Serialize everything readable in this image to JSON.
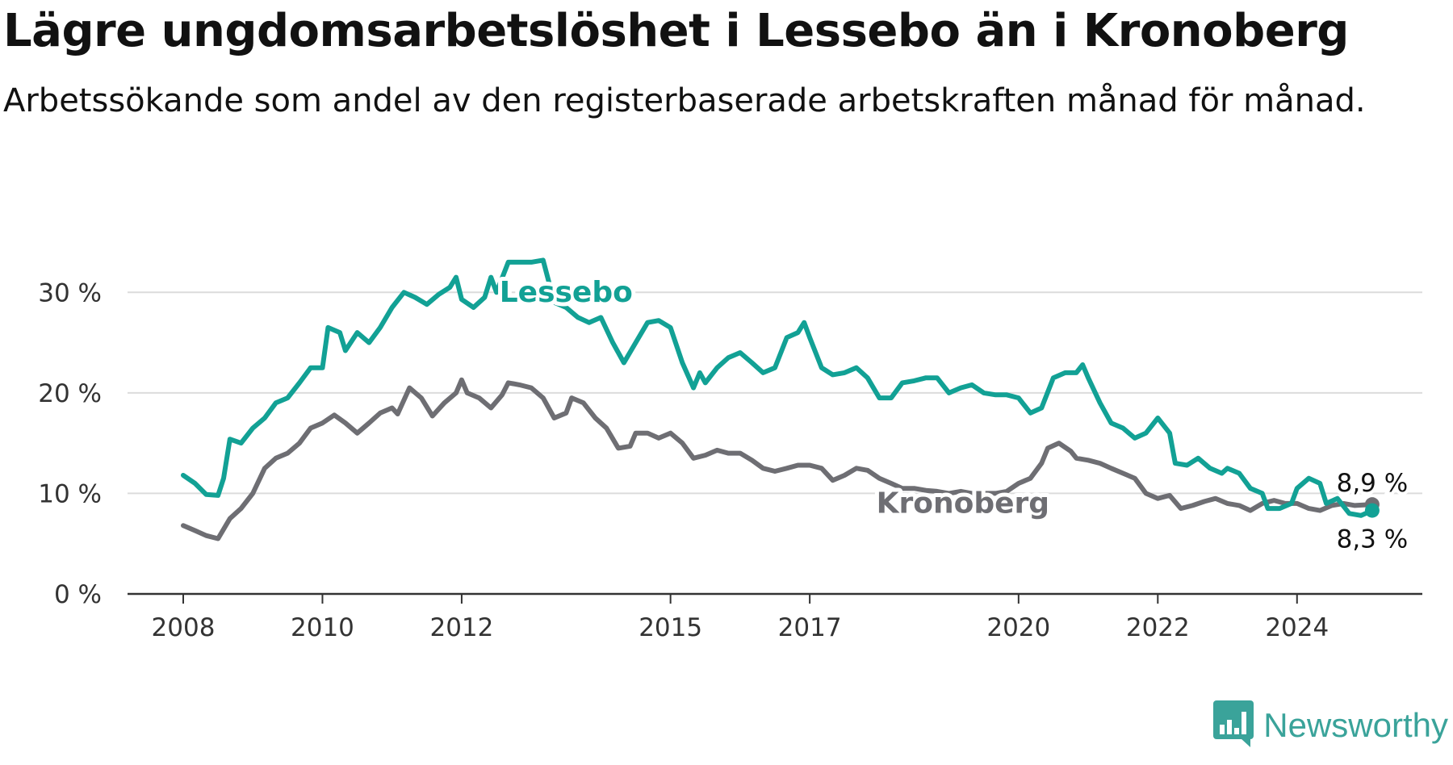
{
  "title": "Lägre ungdomsarbetslöshet i Lessebo än i Kronoberg",
  "subtitle": "Arbetssökande som andel av den registerbaserade arbetskraften månad för månad.",
  "brand": {
    "name": "Newsworthy",
    "color": "#3aa39a",
    "icon": "bar-chart-speech-icon"
  },
  "chart_data": {
    "type": "line",
    "x_range": [
      2007.2,
      2025.8
    ],
    "y_range": [
      0,
      35
    ],
    "y_ticks": [
      0,
      10,
      20,
      30
    ],
    "y_tick_labels": [
      "0 %",
      "10 %",
      "20 %",
      "30 %"
    ],
    "x_ticks": [
      2008,
      2010,
      2012,
      2015,
      2017,
      2020,
      2022,
      2024
    ],
    "x_tick_labels": [
      "2008",
      "2010",
      "2012",
      "2015",
      "2017",
      "2020",
      "2022",
      "2024"
    ],
    "grid": "horizontal",
    "series": [
      {
        "name": "Lessebo",
        "color": "#12a195",
        "end_label": "8,3 %",
        "points": [
          [
            2008.0,
            11.8
          ],
          [
            2008.17,
            11.0
          ],
          [
            2008.33,
            9.9
          ],
          [
            2008.5,
            9.8
          ],
          [
            2008.58,
            11.5
          ],
          [
            2008.67,
            15.4
          ],
          [
            2008.83,
            15.0
          ],
          [
            2009.0,
            16.5
          ],
          [
            2009.17,
            17.5
          ],
          [
            2009.33,
            19.0
          ],
          [
            2009.5,
            19.5
          ],
          [
            2009.67,
            21.0
          ],
          [
            2009.83,
            22.5
          ],
          [
            2010.0,
            22.5
          ],
          [
            2010.08,
            26.5
          ],
          [
            2010.25,
            26.0
          ],
          [
            2010.33,
            24.2
          ],
          [
            2010.5,
            26.0
          ],
          [
            2010.67,
            25.0
          ],
          [
            2010.83,
            26.5
          ],
          [
            2011.0,
            28.5
          ],
          [
            2011.17,
            30.0
          ],
          [
            2011.33,
            29.5
          ],
          [
            2011.5,
            28.8
          ],
          [
            2011.67,
            29.8
          ],
          [
            2011.83,
            30.5
          ],
          [
            2011.92,
            31.5
          ],
          [
            2012.0,
            29.3
          ],
          [
            2012.17,
            28.5
          ],
          [
            2012.33,
            29.5
          ],
          [
            2012.42,
            31.5
          ],
          [
            2012.5,
            30.0
          ],
          [
            2012.67,
            33.0
          ],
          [
            2012.83,
            33.0
          ],
          [
            2013.0,
            33.0
          ],
          [
            2013.17,
            33.2
          ],
          [
            2013.33,
            29.0
          ],
          [
            2013.5,
            28.5
          ],
          [
            2013.67,
            27.5
          ],
          [
            2013.83,
            27.0
          ],
          [
            2014.0,
            27.5
          ],
          [
            2014.17,
            25.0
          ],
          [
            2014.33,
            23.0
          ],
          [
            2014.5,
            25.0
          ],
          [
            2014.67,
            27.0
          ],
          [
            2014.83,
            27.2
          ],
          [
            2015.0,
            26.5
          ],
          [
            2015.17,
            23.0
          ],
          [
            2015.33,
            20.5
          ],
          [
            2015.42,
            22.0
          ],
          [
            2015.5,
            21.0
          ],
          [
            2015.67,
            22.5
          ],
          [
            2015.83,
            23.5
          ],
          [
            2016.0,
            24.0
          ],
          [
            2016.17,
            23.0
          ],
          [
            2016.33,
            22.0
          ],
          [
            2016.5,
            22.5
          ],
          [
            2016.67,
            25.5
          ],
          [
            2016.83,
            26.0
          ],
          [
            2016.92,
            27.0
          ],
          [
            2017.0,
            25.5
          ],
          [
            2017.17,
            22.5
          ],
          [
            2017.33,
            21.8
          ],
          [
            2017.5,
            22.0
          ],
          [
            2017.67,
            22.5
          ],
          [
            2017.83,
            21.5
          ],
          [
            2018.0,
            19.5
          ],
          [
            2018.17,
            19.5
          ],
          [
            2018.33,
            21.0
          ],
          [
            2018.5,
            21.2
          ],
          [
            2018.67,
            21.5
          ],
          [
            2018.83,
            21.5
          ],
          [
            2019.0,
            20.0
          ],
          [
            2019.17,
            20.5
          ],
          [
            2019.33,
            20.8
          ],
          [
            2019.5,
            20.0
          ],
          [
            2019.67,
            19.8
          ],
          [
            2019.83,
            19.8
          ],
          [
            2020.0,
            19.5
          ],
          [
            2020.17,
            18.0
          ],
          [
            2020.33,
            18.5
          ],
          [
            2020.5,
            21.5
          ],
          [
            2020.67,
            22.0
          ],
          [
            2020.83,
            22.0
          ],
          [
            2020.92,
            22.8
          ],
          [
            2021.0,
            21.5
          ],
          [
            2021.17,
            19.0
          ],
          [
            2021.33,
            17.0
          ],
          [
            2021.5,
            16.5
          ],
          [
            2021.67,
            15.5
          ],
          [
            2021.83,
            16.0
          ],
          [
            2022.0,
            17.5
          ],
          [
            2022.17,
            16.0
          ],
          [
            2022.25,
            13.0
          ],
          [
            2022.42,
            12.8
          ],
          [
            2022.58,
            13.5
          ],
          [
            2022.75,
            12.5
          ],
          [
            2022.92,
            12.0
          ],
          [
            2023.0,
            12.5
          ],
          [
            2023.17,
            12.0
          ],
          [
            2023.33,
            10.5
          ],
          [
            2023.5,
            10.0
          ],
          [
            2023.58,
            8.5
          ],
          [
            2023.75,
            8.5
          ],
          [
            2023.92,
            9.0
          ],
          [
            2024.0,
            10.5
          ],
          [
            2024.17,
            11.5
          ],
          [
            2024.33,
            11.0
          ],
          [
            2024.42,
            9.0
          ],
          [
            2024.58,
            9.5
          ],
          [
            2024.75,
            8.0
          ],
          [
            2024.92,
            7.8
          ],
          [
            2025.08,
            8.3
          ]
        ]
      },
      {
        "name": "Kronoberg",
        "color": "#6e6e73",
        "end_label": "8,9 %",
        "points": [
          [
            2008.0,
            6.8
          ],
          [
            2008.17,
            6.3
          ],
          [
            2008.33,
            5.8
          ],
          [
            2008.5,
            5.5
          ],
          [
            2008.67,
            7.5
          ],
          [
            2008.83,
            8.5
          ],
          [
            2009.0,
            10.0
          ],
          [
            2009.17,
            12.5
          ],
          [
            2009.33,
            13.5
          ],
          [
            2009.5,
            14.0
          ],
          [
            2009.67,
            15.0
          ],
          [
            2009.83,
            16.5
          ],
          [
            2010.0,
            17.0
          ],
          [
            2010.17,
            17.8
          ],
          [
            2010.33,
            17.0
          ],
          [
            2010.5,
            16.0
          ],
          [
            2010.67,
            17.0
          ],
          [
            2010.83,
            18.0
          ],
          [
            2011.0,
            18.5
          ],
          [
            2011.08,
            17.9
          ],
          [
            2011.25,
            20.5
          ],
          [
            2011.42,
            19.5
          ],
          [
            2011.58,
            17.7
          ],
          [
            2011.75,
            19.0
          ],
          [
            2011.92,
            20.0
          ],
          [
            2012.0,
            21.3
          ],
          [
            2012.08,
            20.0
          ],
          [
            2012.25,
            19.5
          ],
          [
            2012.42,
            18.5
          ],
          [
            2012.58,
            19.8
          ],
          [
            2012.67,
            21.0
          ],
          [
            2012.83,
            20.8
          ],
          [
            2013.0,
            20.5
          ],
          [
            2013.17,
            19.5
          ],
          [
            2013.33,
            17.5
          ],
          [
            2013.5,
            18.0
          ],
          [
            2013.58,
            19.5
          ],
          [
            2013.75,
            19.0
          ],
          [
            2013.92,
            17.5
          ],
          [
            2014.08,
            16.5
          ],
          [
            2014.25,
            14.5
          ],
          [
            2014.42,
            14.7
          ],
          [
            2014.5,
            16.0
          ],
          [
            2014.67,
            16.0
          ],
          [
            2014.83,
            15.5
          ],
          [
            2015.0,
            16.0
          ],
          [
            2015.17,
            15.0
          ],
          [
            2015.33,
            13.5
          ],
          [
            2015.5,
            13.8
          ],
          [
            2015.67,
            14.3
          ],
          [
            2015.83,
            14.0
          ],
          [
            2016.0,
            14.0
          ],
          [
            2016.17,
            13.3
          ],
          [
            2016.33,
            12.5
          ],
          [
            2016.5,
            12.2
          ],
          [
            2016.67,
            12.5
          ],
          [
            2016.83,
            12.8
          ],
          [
            2017.0,
            12.8
          ],
          [
            2017.17,
            12.5
          ],
          [
            2017.33,
            11.3
          ],
          [
            2017.5,
            11.8
          ],
          [
            2017.67,
            12.5
          ],
          [
            2017.83,
            12.3
          ],
          [
            2018.0,
            11.5
          ],
          [
            2018.17,
            11.0
          ],
          [
            2018.33,
            10.5
          ],
          [
            2018.5,
            10.5
          ],
          [
            2018.67,
            10.3
          ],
          [
            2018.83,
            10.2
          ],
          [
            2019.0,
            10.0
          ],
          [
            2019.17,
            10.2
          ],
          [
            2019.33,
            10.0
          ],
          [
            2019.5,
            10.0
          ],
          [
            2019.67,
            10.0
          ],
          [
            2019.83,
            10.2
          ],
          [
            2020.0,
            11.0
          ],
          [
            2020.17,
            11.5
          ],
          [
            2020.33,
            13.0
          ],
          [
            2020.42,
            14.5
          ],
          [
            2020.58,
            15.0
          ],
          [
            2020.75,
            14.2
          ],
          [
            2020.83,
            13.5
          ],
          [
            2021.0,
            13.3
          ],
          [
            2021.17,
            13.0
          ],
          [
            2021.33,
            12.5
          ],
          [
            2021.5,
            12.0
          ],
          [
            2021.67,
            11.5
          ],
          [
            2021.83,
            10.0
          ],
          [
            2022.0,
            9.5
          ],
          [
            2022.17,
            9.8
          ],
          [
            2022.33,
            8.5
          ],
          [
            2022.5,
            8.8
          ],
          [
            2022.67,
            9.2
          ],
          [
            2022.83,
            9.5
          ],
          [
            2023.0,
            9.0
          ],
          [
            2023.17,
            8.8
          ],
          [
            2023.33,
            8.3
          ],
          [
            2023.5,
            9.0
          ],
          [
            2023.67,
            9.3
          ],
          [
            2023.83,
            9.0
          ],
          [
            2024.0,
            9.0
          ],
          [
            2024.17,
            8.5
          ],
          [
            2024.33,
            8.3
          ],
          [
            2024.5,
            8.8
          ],
          [
            2024.67,
            9.0
          ],
          [
            2024.83,
            8.8
          ],
          [
            2025.08,
            8.9
          ]
        ]
      }
    ]
  }
}
